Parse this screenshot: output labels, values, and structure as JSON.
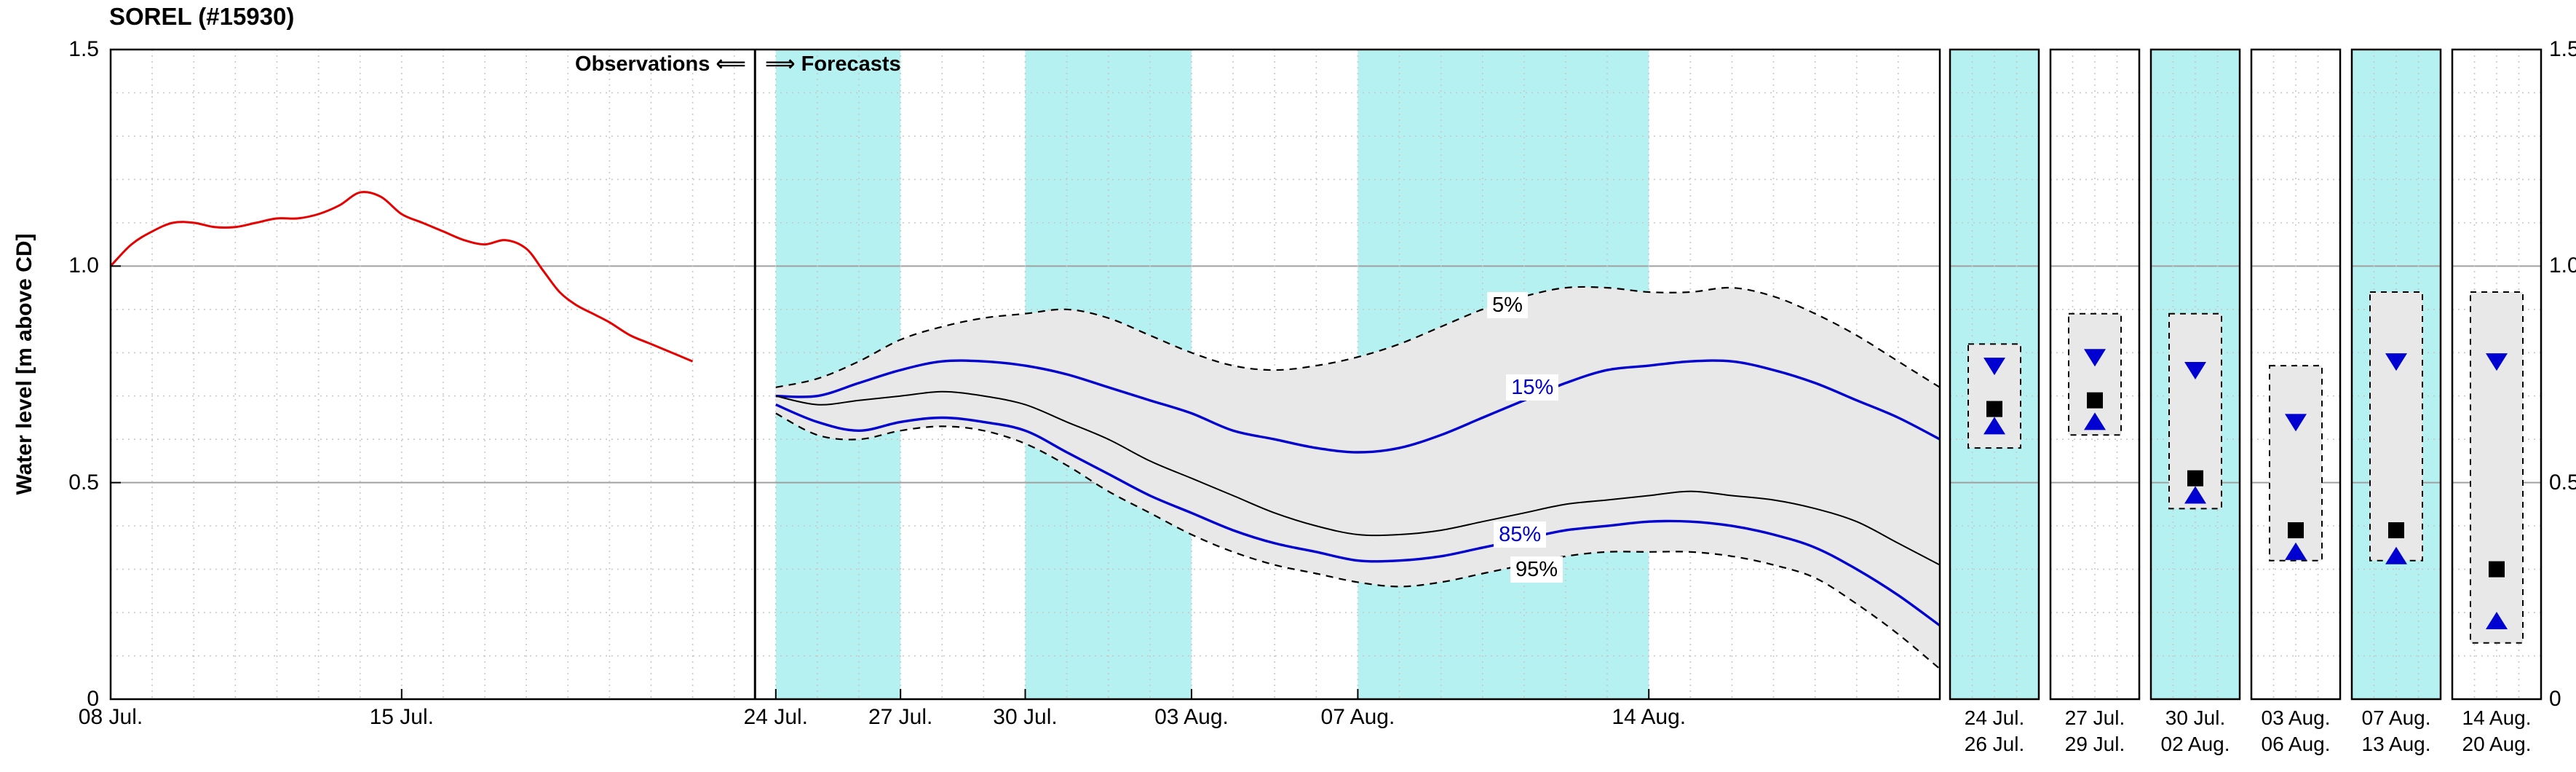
{
  "title": "SOREL (#15930)",
  "header": {
    "observations_label": "Observations",
    "left_arrow": "⟸",
    "right_arrow": "⟹",
    "forecasts_label": "Forecasts"
  },
  "y_axis": {
    "label": "Water level [m above CD]",
    "ticks": [
      {
        "value": 0,
        "label": "0"
      },
      {
        "value": 0.5,
        "label": "0.5"
      },
      {
        "value": 1.0,
        "label": "1.0"
      },
      {
        "value": 1.5,
        "label": "1.5"
      }
    ]
  },
  "x_axis": {
    "days_total": 44,
    "ticks": [
      {
        "day": 0,
        "label": "08 Jul."
      },
      {
        "day": 7,
        "label": "15 Jul."
      },
      {
        "day": 16,
        "label": "24 Jul."
      },
      {
        "day": 19,
        "label": "27 Jul."
      },
      {
        "day": 22,
        "label": "30 Jul."
      },
      {
        "day": 26,
        "label": "03 Aug."
      },
      {
        "day": 30,
        "label": "07 Aug."
      },
      {
        "day": 37,
        "label": "14 Aug."
      }
    ]
  },
  "colors": {
    "observations_red": "#e60000",
    "percentile_blue": "#0000d0",
    "median_black": "#000000",
    "band_fill": "#e8e8e8",
    "shading_cyan": "#b5f1f1",
    "grid_minor": "#c8c8c8",
    "grid_major": "#a0a0a0",
    "frame": "#000000"
  },
  "chart_data": {
    "type": "line",
    "title": "SOREL (#15930)",
    "ylabel": "Water level [m above CD]",
    "ylim": [
      0,
      1.5
    ],
    "x_unit": "days since 08 Jul",
    "divider_day": 15.5,
    "shaded_periods_days": [
      [
        16,
        19
      ],
      [
        22,
        26
      ],
      [
        30,
        37
      ]
    ],
    "observations": {
      "name": "Observations",
      "x_days": [
        0,
        0.5,
        1,
        1.5,
        2,
        2.5,
        3,
        3.5,
        4,
        4.5,
        5,
        5.5,
        6,
        6.5,
        7,
        7.5,
        8,
        8.5,
        9,
        9.5,
        10,
        10.4,
        10.8,
        11.2,
        11.6,
        12,
        12.5,
        13,
        13.5,
        14
      ],
      "values": [
        1.0,
        1.05,
        1.08,
        1.1,
        1.1,
        1.09,
        1.09,
        1.1,
        1.11,
        1.11,
        1.12,
        1.14,
        1.17,
        1.16,
        1.12,
        1.1,
        1.08,
        1.06,
        1.05,
        1.06,
        1.04,
        0.99,
        0.94,
        0.91,
        0.89,
        0.87,
        0.84,
        0.82,
        0.8,
        0.78
      ]
    },
    "forecast": {
      "x_days": [
        16,
        17,
        18,
        19,
        20,
        21,
        22,
        23,
        24,
        25,
        26,
        27,
        28,
        29,
        30,
        31,
        32,
        33,
        34,
        35,
        36,
        37,
        38,
        39,
        40,
        41,
        42,
        43,
        44
      ],
      "series": [
        {
          "name": "5%",
          "line": "dashed-black",
          "values": [
            0.72,
            0.74,
            0.78,
            0.83,
            0.86,
            0.88,
            0.89,
            0.9,
            0.88,
            0.84,
            0.8,
            0.77,
            0.76,
            0.77,
            0.79,
            0.82,
            0.86,
            0.9,
            0.93,
            0.95,
            0.95,
            0.94,
            0.94,
            0.95,
            0.93,
            0.89,
            0.84,
            0.78,
            0.72
          ]
        },
        {
          "name": "15%",
          "line": "solid-blue",
          "values": [
            0.7,
            0.7,
            0.73,
            0.76,
            0.78,
            0.78,
            0.77,
            0.75,
            0.72,
            0.69,
            0.66,
            0.62,
            0.6,
            0.58,
            0.57,
            0.58,
            0.61,
            0.65,
            0.69,
            0.73,
            0.76,
            0.77,
            0.78,
            0.78,
            0.76,
            0.73,
            0.69,
            0.65,
            0.6
          ]
        },
        {
          "name": "50%",
          "line": "solid-black",
          "values": [
            0.7,
            0.68,
            0.69,
            0.7,
            0.71,
            0.7,
            0.68,
            0.64,
            0.6,
            0.55,
            0.51,
            0.47,
            0.43,
            0.4,
            0.38,
            0.38,
            0.39,
            0.41,
            0.43,
            0.45,
            0.46,
            0.47,
            0.48,
            0.47,
            0.46,
            0.44,
            0.41,
            0.36,
            0.31
          ]
        },
        {
          "name": "85%",
          "line": "solid-blue",
          "values": [
            0.68,
            0.64,
            0.62,
            0.64,
            0.65,
            0.64,
            0.62,
            0.57,
            0.52,
            0.47,
            0.43,
            0.39,
            0.36,
            0.34,
            0.32,
            0.32,
            0.33,
            0.35,
            0.37,
            0.39,
            0.4,
            0.41,
            0.41,
            0.4,
            0.38,
            0.35,
            0.3,
            0.24,
            0.17
          ]
        },
        {
          "name": "95%",
          "line": "dashed-black",
          "values": [
            0.66,
            0.61,
            0.6,
            0.62,
            0.63,
            0.62,
            0.59,
            0.54,
            0.48,
            0.43,
            0.38,
            0.34,
            0.31,
            0.29,
            0.27,
            0.26,
            0.27,
            0.29,
            0.31,
            0.33,
            0.34,
            0.34,
            0.34,
            0.33,
            0.31,
            0.28,
            0.22,
            0.15,
            0.07
          ]
        }
      ]
    },
    "percentile_labels": [
      {
        "text": "5%",
        "day": 33.6,
        "value": 0.91,
        "color": "#000000"
      },
      {
        "text": "15%",
        "day": 34.2,
        "value": 0.72,
        "color": "#0000d0"
      },
      {
        "text": "85%",
        "day": 33.9,
        "value": 0.38,
        "color": "#0000d0"
      },
      {
        "text": "95%",
        "day": 34.3,
        "value": 0.3,
        "color": "#000000"
      }
    ]
  },
  "summary_panels": [
    {
      "period_start_label": "24 Jul.",
      "period_end_label": "26 Jul.",
      "shaded": true,
      "box_range": [
        0.58,
        0.82
      ],
      "upper_marker": 0.77,
      "median_marker": 0.67,
      "lower_marker": 0.63
    },
    {
      "period_start_label": "27 Jul.",
      "period_end_label": "29 Jul.",
      "shaded": false,
      "box_range": [
        0.61,
        0.89
      ],
      "upper_marker": 0.79,
      "median_marker": 0.69,
      "lower_marker": 0.64
    },
    {
      "period_start_label": "30 Jul.",
      "period_end_label": "02 Aug.",
      "shaded": true,
      "box_range": [
        0.44,
        0.89
      ],
      "upper_marker": 0.76,
      "median_marker": 0.51,
      "lower_marker": 0.47
    },
    {
      "period_start_label": "03 Aug.",
      "period_end_label": "06 Aug.",
      "shaded": false,
      "box_range": [
        0.32,
        0.77
      ],
      "upper_marker": 0.64,
      "median_marker": 0.39,
      "lower_marker": 0.34
    },
    {
      "period_start_label": "07 Aug.",
      "period_end_label": "13 Aug.",
      "shaded": true,
      "box_range": [
        0.32,
        0.94
      ],
      "upper_marker": 0.78,
      "median_marker": 0.39,
      "lower_marker": 0.33
    },
    {
      "period_start_label": "14 Aug.",
      "period_end_label": "20 Aug.",
      "shaded": false,
      "box_range": [
        0.13,
        0.94
      ],
      "upper_marker": 0.78,
      "median_marker": 0.3,
      "lower_marker": 0.18
    }
  ]
}
